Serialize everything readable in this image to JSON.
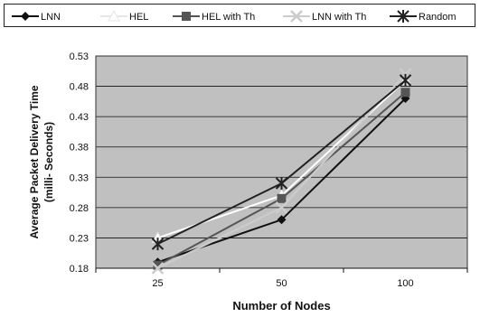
{
  "chart_data": {
    "type": "line",
    "title": "",
    "xlabel": "Number of Nodes",
    "ylabel": "Average Packet Delivery Time",
    "ylabel_unit": "(milli- Seconds)",
    "categories": [
      "25",
      "50",
      "100"
    ],
    "ylim": [
      0.18,
      0.53
    ],
    "yticks": [
      "0.18",
      "0.23",
      "0.28",
      "0.33",
      "0.38",
      "0.43",
      "0.48",
      "0.53"
    ],
    "grid": true,
    "legend_position": "top",
    "series": [
      {
        "name": "LNN",
        "values": [
          0.19,
          0.26,
          0.46
        ],
        "color": "#111111",
        "marker": "diamond"
      },
      {
        "name": "HEL",
        "values": [
          0.23,
          0.3,
          0.49
        ],
        "color": "#ffffff",
        "marker": "triangle"
      },
      {
        "name": "HEL with Th",
        "values": [
          0.185,
          0.295,
          0.47
        ],
        "color": "#555555",
        "marker": "square"
      },
      {
        "name": "LNN with Th",
        "values": [
          0.18,
          0.28,
          0.5
        ],
        "color": "#cccccc",
        "marker": "x"
      },
      {
        "name": "Random",
        "values": [
          0.22,
          0.32,
          0.49
        ],
        "color": "#222222",
        "marker": "star"
      }
    ]
  }
}
